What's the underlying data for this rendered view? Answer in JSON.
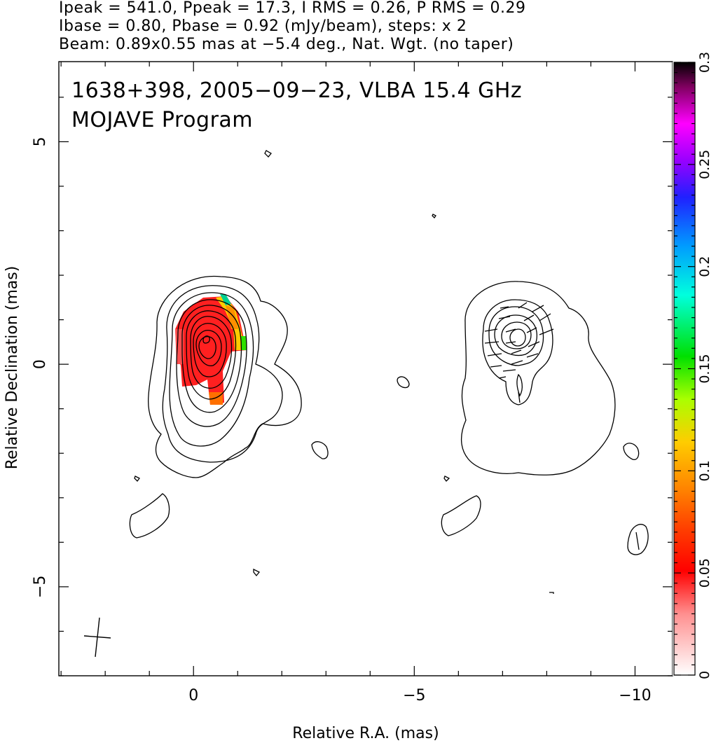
{
  "header": {
    "line1": "Ipeak = 541.0, Ppeak = 17.3, I RMS = 0.26, P RMS = 0.29",
    "line2": "Ibase = 0.80, Pbase = 0.92 (mJy/beam), steps: x 2",
    "line3": "Beam: 0.89x0.55 mas at −5.4 deg., Nat. Wgt. (no taper)"
  },
  "overlay": {
    "title": "1638+398, 2005−09−23, VLBA 15.4 GHz",
    "subtitle": "MOJAVE Program"
  },
  "chart_data": {
    "type": "contour_map",
    "xlabel": "Relative R.A. (mas)",
    "ylabel": "Relative Declination (mas)",
    "xlim": [
      3.05,
      -10.85
    ],
    "ylim": [
      -7.0,
      6.8
    ],
    "xticks": [
      0,
      -5,
      -10
    ],
    "xtick_labels": [
      "0",
      "−5",
      "−10"
    ],
    "yticks": [
      5,
      0,
      -5
    ],
    "ytick_labels": [
      "5",
      "0",
      "−5"
    ],
    "x_minor_step": 1,
    "y_minor_step": 1,
    "colorbar": {
      "label_values": [
        0,
        0.05,
        0.1,
        0.15,
        0.2,
        0.25,
        0.3
      ],
      "tick_labels": [
        "0",
        "0.05",
        "0.1",
        "0.15",
        "0.2",
        "0.25",
        "0.3"
      ],
      "range": [
        0,
        0.3
      ]
    },
    "panels": [
      {
        "name": "left",
        "center": [
          -0.15,
          0.25
        ]
      },
      {
        "name": "right",
        "center": [
          -7.15,
          0.35
        ]
      }
    ],
    "contour_levels_mJy": [
      0.8,
      1.6,
      3.2,
      6.4,
      12.8,
      25.6,
      51.2,
      102.4,
      204.8,
      409.6
    ],
    "beam": {
      "major_mas": 0.89,
      "minor_mas": 0.55,
      "pa_deg": -5.4
    }
  }
}
